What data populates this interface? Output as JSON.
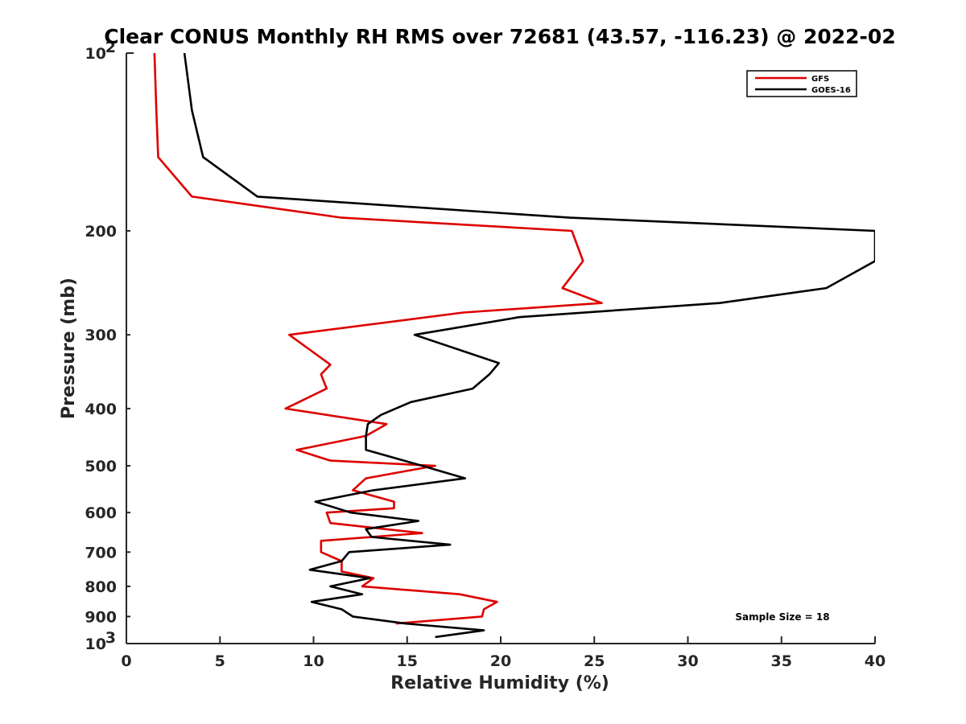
{
  "chart_data": {
    "type": "line",
    "title": "Clear CONUS Monthly RH RMS over 72681 (43.57, -116.23) @ 2022-02",
    "xlabel": "Relative Humidity (%)",
    "ylabel": "Pressure (mb)",
    "xlim": [
      0,
      40
    ],
    "ylim": [
      100,
      1000
    ],
    "y_scale": "log",
    "y_reversed": true,
    "x_ticks": [
      0,
      5,
      10,
      15,
      20,
      25,
      30,
      35,
      40
    ],
    "x_tick_labels": [
      "0",
      "5",
      "10",
      "15",
      "20",
      "25",
      "30",
      "35",
      "40"
    ],
    "y_ticks": [
      200,
      300,
      400,
      500,
      600,
      700,
      800,
      900
    ],
    "y_tick_labels": [
      "200",
      "300",
      "400",
      "500",
      "600",
      "700",
      "800",
      "900"
    ],
    "y_end_labels": [
      {
        "base": "10",
        "exp": "2",
        "value": 100
      },
      {
        "base": "10",
        "exp": "3",
        "value": 1000
      }
    ],
    "legend_position": "top-right",
    "annotation": "Sample Size = 18",
    "series": [
      {
        "name": "GFS",
        "color": "#dd0000",
        "points": [
          [
            1.5,
            100
          ],
          [
            1.6,
            125
          ],
          [
            1.7,
            150
          ],
          [
            3.5,
            175
          ],
          [
            11.5,
            190
          ],
          [
            23.8,
            200
          ],
          [
            24.4,
            225
          ],
          [
            23.3,
            250
          ],
          [
            25.4,
            265
          ],
          [
            18,
            275
          ],
          [
            8.7,
            300
          ],
          [
            10.9,
            337
          ],
          [
            10.4,
            350
          ],
          [
            10.7,
            370
          ],
          [
            8.5,
            400
          ],
          [
            13.9,
            425
          ],
          [
            12.8,
            445
          ],
          [
            9.1,
            470
          ],
          [
            10.9,
            490
          ],
          [
            16.5,
            500
          ],
          [
            12.8,
            525
          ],
          [
            12.1,
            550
          ],
          [
            14.3,
            575
          ],
          [
            14.3,
            590
          ],
          [
            10.7,
            600
          ],
          [
            10.9,
            625
          ],
          [
            15.8,
            650
          ],
          [
            10.4,
            670
          ],
          [
            10.4,
            700
          ],
          [
            11.5,
            725
          ],
          [
            11.5,
            755
          ],
          [
            13.2,
            775
          ],
          [
            12.6,
            800
          ],
          [
            17.8,
            825
          ],
          [
            19.8,
            850
          ],
          [
            19.1,
            875
          ],
          [
            19,
            900
          ],
          [
            14.4,
            925
          ]
        ]
      },
      {
        "name": "GOES-16",
        "color": "#000000",
        "points": [
          [
            3.1,
            100
          ],
          [
            3.5,
            125
          ],
          [
            4.1,
            150
          ],
          [
            7,
            175
          ],
          [
            23.7,
            190
          ],
          [
            40,
            200
          ],
          [
            40,
            225
          ],
          [
            37.4,
            250
          ],
          [
            31.7,
            265
          ],
          [
            21,
            280
          ],
          [
            15.4,
            300
          ],
          [
            19.9,
            335
          ],
          [
            19.4,
            350
          ],
          [
            18.5,
            370
          ],
          [
            15.2,
            390
          ],
          [
            13.6,
            410
          ],
          [
            12.9,
            425
          ],
          [
            12.8,
            445
          ],
          [
            12.8,
            470
          ],
          [
            15.8,
            500
          ],
          [
            18.1,
            525
          ],
          [
            13.2,
            550
          ],
          [
            10.1,
            575
          ],
          [
            12,
            600
          ],
          [
            15.6,
            620
          ],
          [
            12.8,
            640
          ],
          [
            13.1,
            660
          ],
          [
            17.3,
            680
          ],
          [
            11.9,
            700
          ],
          [
            11.5,
            725
          ],
          [
            9.8,
            750
          ],
          [
            13,
            775
          ],
          [
            10.9,
            800
          ],
          [
            12.6,
            825
          ],
          [
            9.9,
            850
          ],
          [
            11.5,
            875
          ],
          [
            12.1,
            900
          ],
          [
            14.9,
            925
          ],
          [
            19.1,
            950
          ],
          [
            16.5,
            975
          ]
        ]
      }
    ]
  }
}
